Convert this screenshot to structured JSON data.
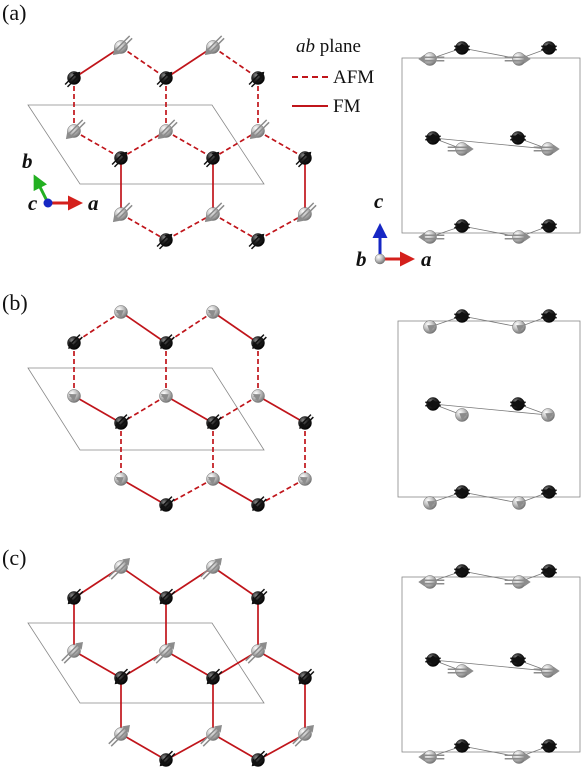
{
  "panels": [
    {
      "label": "(a)",
      "pattern": "a"
    },
    {
      "label": "(b)",
      "pattern": "b"
    },
    {
      "label": "(c)",
      "pattern": "c"
    }
  ],
  "legend": {
    "title_italic": "ab",
    "title_rest": " plane",
    "afm": "AFM",
    "fm": "FM"
  },
  "axes_inplane": {
    "b": "b",
    "c": "c",
    "a": "a"
  },
  "axes_side": {
    "c": "c",
    "b": "b",
    "a": "a"
  },
  "colors": {
    "bond": "#c0151b",
    "atom_dark": "#1a1a1a",
    "atom_light": "#a8a8a8",
    "arrow_dark": "#111111",
    "arrow_light": "#8c8c8c",
    "axis_a": "#d4201c",
    "axis_b": "#23b022",
    "axis_c": "#1627c4",
    "cell_line": "#888888"
  }
}
